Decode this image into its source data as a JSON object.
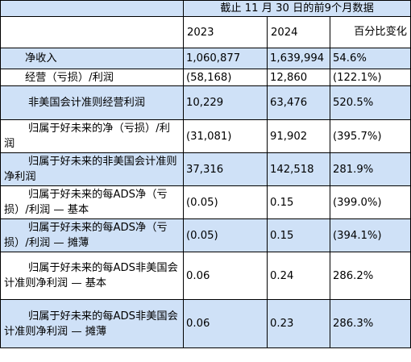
{
  "header": {
    "period": "截止 11 月 30 日的前9个月数据",
    "year_2023": "2023",
    "year_2024": "2024",
    "pct_change": "百分比变化"
  },
  "rows": [
    {
      "label": "净收入",
      "v2023": "1,060,877",
      "v2024": "1,639,994",
      "pct": "54.6%"
    },
    {
      "label": "经营（亏损）/利润",
      "v2023": "(58,168)",
      "v2024": "12,860",
      "pct": "(122.1%)"
    },
    {
      "label": "非美国会计准则经营利润",
      "v2023": "10,229",
      "v2024": "63,476",
      "pct": "520.5%"
    },
    {
      "label": "归属于好未来的净（亏损）/利润",
      "v2023": "(31,081)",
      "v2024": "91,902",
      "pct": "(395.7%)"
    },
    {
      "label": "归属于好未来的非美国会计准则净利润",
      "v2023": "37,316",
      "v2024": "142,518",
      "pct": "281.9%"
    },
    {
      "label": "归属于好未来的每ADS净（亏损）/利润 — 基本",
      "v2023": "(0.05)",
      "v2024": "0.15",
      "pct": "(399.0%)"
    },
    {
      "label": "归属于好未来的每ADS净（亏损）/利润 — 摊薄",
      "v2023": "(0.05)",
      "v2024": "0.15",
      "pct": "(394.1%)"
    },
    {
      "label": "归属于好未来的每ADS非美国会计准则净利润 — 基本",
      "v2023": "0.06",
      "v2024": "0.24",
      "pct": "286.2%"
    },
    {
      "label": "归属于好未来的每ADS非美国会计准则净利润 — 摊薄",
      "v2023": "0.06",
      "v2024": "0.23",
      "pct": "286.3%"
    }
  ],
  "colors": {
    "highlight_row": "#cfe1f7",
    "border": "#000000"
  }
}
